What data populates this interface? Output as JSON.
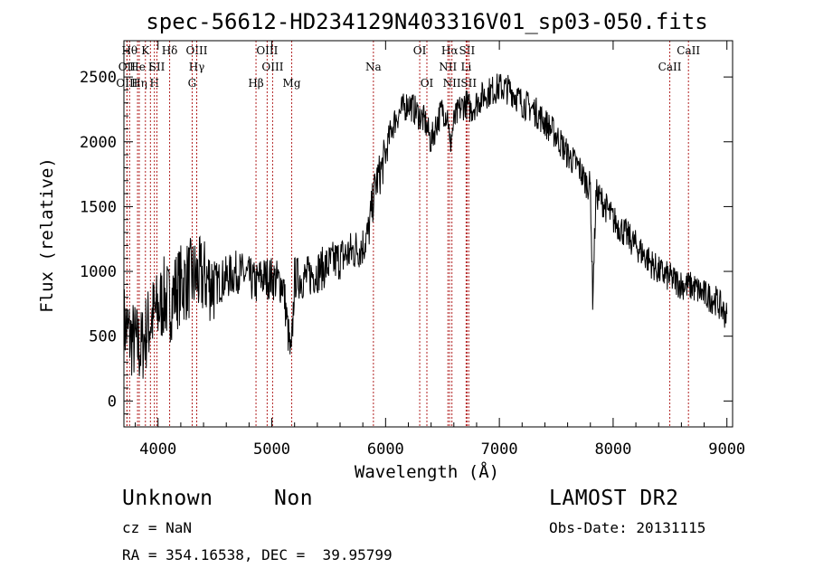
{
  "chart_data": {
    "type": "line",
    "title": "spec-56612-HD234129N403316V01_sp03-050.fits",
    "xlabel": "Wavelength (Å)",
    "ylabel": "Flux (relative)",
    "xlim": [
      3700,
      9050
    ],
    "ylim": [
      -200,
      2780
    ],
    "xticks": [
      4000,
      5000,
      6000,
      7000,
      8000,
      9000
    ],
    "yticks": [
      0,
      500,
      1000,
      1500,
      2000,
      2500
    ],
    "grid": false,
    "series": [
      {
        "x": [
          3700,
          3750,
          3800,
          3850,
          3900,
          3950,
          4000,
          4050,
          4100,
          4150,
          4200,
          4300,
          4400,
          4500,
          4600,
          4700,
          4800,
          4860,
          4900,
          5000,
          5100,
          5170,
          5200,
          5300,
          5400,
          5500,
          5600,
          5700,
          5800,
          5850,
          5890,
          5920,
          5950,
          6000,
          6050,
          6100,
          6150,
          6200,
          6250,
          6300,
          6350,
          6400,
          6450,
          6500,
          6550,
          6563,
          6600,
          6650,
          6700,
          6750,
          6800,
          6850,
          6900,
          6950,
          7000,
          7100,
          7200,
          7300,
          7400,
          7500,
          7600,
          7700,
          7750,
          7800,
          7820,
          7850,
          7900,
          8000,
          8100,
          8200,
          8300,
          8400,
          8500,
          8600,
          8700,
          8800,
          8900,
          8950,
          9000
        ],
        "y": [
          600,
          500,
          450,
          400,
          550,
          650,
          700,
          800,
          750,
          850,
          900,
          950,
          950,
          900,
          950,
          1000,
          950,
          900,
          950,
          950,
          900,
          300,
          950,
          950,
          1000,
          1050,
          1100,
          1150,
          1200,
          1300,
          1550,
          1700,
          1750,
          1900,
          2100,
          2200,
          2250,
          2300,
          2250,
          2200,
          2150,
          2000,
          2150,
          2250,
          2200,
          1950,
          2150,
          2250,
          2300,
          2250,
          2300,
          2350,
          2380,
          2400,
          2420,
          2400,
          2300,
          2250,
          2150,
          2050,
          1900,
          1800,
          1700,
          1650,
          800,
          1600,
          1550,
          1400,
          1300,
          1200,
          1100,
          1000,
          950,
          900,
          880,
          820,
          780,
          720,
          650
        ]
      }
    ],
    "line_marks": [
      {
        "x": 3750,
        "label": "Hθ",
        "row": 1
      },
      {
        "x": 3727,
        "label": "OII",
        "row": 2
      },
      {
        "x": 3727,
        "label": "OIII",
        "row": 3
      },
      {
        "x": 3820,
        "label": "He",
        "row": 2
      },
      {
        "x": 3835,
        "label": "Hη",
        "row": 3
      },
      {
        "x": 3889,
        "label": "K",
        "row": 1
      },
      {
        "x": 3933,
        "label": "I",
        "row": 2
      },
      {
        "x": 3968,
        "label": "H",
        "row": 3
      },
      {
        "x": 4102,
        "label": "Hδ",
        "row": 1
      },
      {
        "x": 3990,
        "label": "SII",
        "row": 2
      },
      {
        "x": 4340,
        "label": "OIII",
        "row": 1
      },
      {
        "x": 4340,
        "label": "Hγ",
        "row": 2
      },
      {
        "x": 4300,
        "label": "G",
        "row": 3
      },
      {
        "x": 4861,
        "label": "Hβ",
        "row": 3
      },
      {
        "x": 4959,
        "label": "OIII",
        "row": 1
      },
      {
        "x": 5007,
        "label": "OIII",
        "row": 2
      },
      {
        "x": 5175,
        "label": "Mg",
        "row": 3
      },
      {
        "x": 5893,
        "label": "Na",
        "row": 2
      },
      {
        "x": 6300,
        "label": "OI",
        "row": 1
      },
      {
        "x": 6363,
        "label": "OI",
        "row": 3
      },
      {
        "x": 6563,
        "label": "Hα",
        "row": 1
      },
      {
        "x": 6548,
        "label": "NII",
        "row": 2
      },
      {
        "x": 6583,
        "label": "NII",
        "row": 3
      },
      {
        "x": 6716,
        "label": "SII",
        "row": 1
      },
      {
        "x": 6708,
        "label": "Li",
        "row": 2
      },
      {
        "x": 6731,
        "label": "SII",
        "row": 3
      },
      {
        "x": 8498,
        "label": "CaII",
        "row": 2
      },
      {
        "x": 8662,
        "label": "CaII",
        "row": 1
      }
    ],
    "line_colors": {
      "spectrum": "#000000",
      "marker": "#b22222"
    }
  },
  "info": {
    "object_class": "Unknown",
    "subclass": "Non",
    "survey": "LAMOST DR2",
    "cz": "cz = NaN",
    "obs_date": "Obs-Date: 20131115",
    "coords": "RA = 354.16538, DEC =  39.95799"
  }
}
